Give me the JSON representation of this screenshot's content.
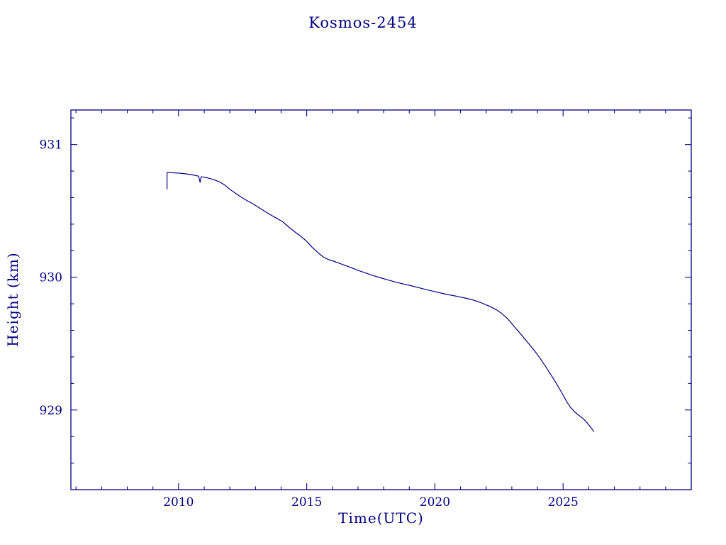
{
  "page": {
    "background": "#ffffff",
    "accent_color": "#000080"
  },
  "chart_data": {
    "type": "line",
    "title": "Kosmos-2454",
    "xlabel": "Time(UTC)",
    "ylabel": "Height (km)",
    "xlim": [
      2005.8,
      2030.0
    ],
    "ylim": [
      928.4,
      931.26
    ],
    "grid": false,
    "legend": "none",
    "axis_color": "#000080",
    "line_color": "#000080",
    "x_major_ticks": [
      2010,
      2015,
      2020,
      2025
    ],
    "x_tick_labels": [
      "2010",
      "2015",
      "2020",
      "2025"
    ],
    "x_minor_step": 1,
    "y_major_ticks": [
      929,
      930,
      931
    ],
    "y_tick_labels": [
      "929",
      "930",
      "931"
    ],
    "y_minor_step": 0.2,
    "series": [
      {
        "name": "orbit-height",
        "points": [
          [
            2009.55,
            930.665
          ],
          [
            2009.55,
            930.79
          ],
          [
            2009.8,
            930.787
          ],
          [
            2010.1,
            930.783
          ],
          [
            2010.45,
            930.775
          ],
          [
            2010.78,
            930.762
          ],
          [
            2010.84,
            930.715
          ],
          [
            2010.88,
            930.757
          ],
          [
            2011.1,
            930.75
          ],
          [
            2011.35,
            930.737
          ],
          [
            2011.6,
            930.718
          ],
          [
            2011.8,
            930.695
          ],
          [
            2012.0,
            930.663
          ],
          [
            2012.3,
            930.622
          ],
          [
            2012.6,
            930.585
          ],
          [
            2012.9,
            930.553
          ],
          [
            2013.2,
            930.517
          ],
          [
            2013.5,
            930.48
          ],
          [
            2013.8,
            930.447
          ],
          [
            2014.05,
            930.42
          ],
          [
            2014.3,
            930.378
          ],
          [
            2014.55,
            930.34
          ],
          [
            2014.75,
            930.312
          ],
          [
            2015.0,
            930.27
          ],
          [
            2015.2,
            930.228
          ],
          [
            2015.45,
            930.183
          ],
          [
            2015.65,
            930.152
          ],
          [
            2015.85,
            930.133
          ],
          [
            2016.1,
            930.118
          ],
          [
            2016.4,
            930.096
          ],
          [
            2016.7,
            930.075
          ],
          [
            2017.0,
            930.052
          ],
          [
            2017.3,
            930.032
          ],
          [
            2017.6,
            930.012
          ],
          [
            2017.9,
            929.995
          ],
          [
            2018.2,
            929.978
          ],
          [
            2018.5,
            929.962
          ],
          [
            2018.8,
            929.948
          ],
          [
            2019.1,
            929.935
          ],
          [
            2019.4,
            929.92
          ],
          [
            2019.7,
            929.905
          ],
          [
            2020.0,
            929.892
          ],
          [
            2020.3,
            929.878
          ],
          [
            2020.6,
            929.866
          ],
          [
            2020.9,
            929.855
          ],
          [
            2021.2,
            929.842
          ],
          [
            2021.5,
            929.828
          ],
          [
            2021.8,
            929.808
          ],
          [
            2022.0,
            929.792
          ],
          [
            2022.2,
            929.775
          ],
          [
            2022.4,
            929.755
          ],
          [
            2022.6,
            929.728
          ],
          [
            2022.8,
            929.694
          ],
          [
            2022.95,
            929.663
          ],
          [
            2023.1,
            929.627
          ],
          [
            2023.3,
            929.583
          ],
          [
            2023.5,
            929.537
          ],
          [
            2023.7,
            929.49
          ],
          [
            2023.9,
            929.443
          ],
          [
            2024.1,
            929.39
          ],
          [
            2024.3,
            929.333
          ],
          [
            2024.5,
            929.273
          ],
          [
            2024.7,
            929.212
          ],
          [
            2024.85,
            929.163
          ],
          [
            2025.0,
            929.113
          ],
          [
            2025.15,
            929.06
          ],
          [
            2025.3,
            929.017
          ],
          [
            2025.45,
            928.986
          ],
          [
            2025.6,
            928.962
          ],
          [
            2025.75,
            928.94
          ],
          [
            2025.9,
            928.912
          ],
          [
            2026.05,
            928.877
          ],
          [
            2026.2,
            928.838
          ]
        ]
      }
    ]
  }
}
